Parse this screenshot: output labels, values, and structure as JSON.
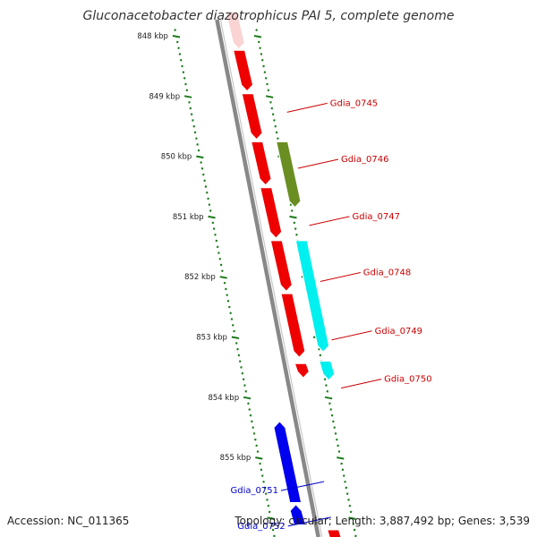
{
  "title": "Gluconacetobacter diazotrophicus PAI 5, complete genome",
  "footer": {
    "accession": "Accession: NC_011365",
    "summary": "Topology: circular; Length: 3,887,492 bp; Genes: 3,539"
  },
  "scale": {
    "unit": "kbp",
    "ticks": [
      {
        "label": "848 kbp",
        "kbp": 848
      },
      {
        "label": "849 kbp",
        "kbp": 849
      },
      {
        "label": "850 kbp",
        "kbp": 850
      },
      {
        "label": "851 kbp",
        "kbp": 851
      },
      {
        "label": "852 kbp",
        "kbp": 852
      },
      {
        "label": "853 kbp",
        "kbp": 853
      },
      {
        "label": "854 kbp",
        "kbp": 854
      },
      {
        "label": "855 kbp",
        "kbp": 855
      }
    ]
  },
  "colors": {
    "ruler": "#1a7a1a",
    "backbone": "#888888",
    "red_gene": "#ee0000",
    "olive_gene": "#6b8e23",
    "cyan_gene": "#00f0f0",
    "blue_gene": "#0000ee",
    "label_red": "#cc0000",
    "label_blue": "#0000cc"
  },
  "features": [
    {
      "strand": "+",
      "start": 847.6,
      "end": 848.22,
      "color": "pink",
      "faded": true
    },
    {
      "strand": "+",
      "start": 848.24,
      "end": 848.92,
      "color": "red"
    },
    {
      "strand": "+",
      "start": 848.96,
      "end": 849.72,
      "color": "red"
    },
    {
      "strand": "+",
      "start": 849.76,
      "end": 850.48,
      "color": "red"
    },
    {
      "strand": "+",
      "start": 850.52,
      "end": 851.36,
      "color": "red"
    },
    {
      "strand": "+",
      "start": 851.4,
      "end": 852.24,
      "color": "red"
    },
    {
      "strand": "+",
      "start": 852.28,
      "end": 853.34,
      "color": "red"
    },
    {
      "strand": "+",
      "start": 853.44,
      "end": 853.68,
      "color": "red"
    },
    {
      "strand": "+",
      "start": 856.2,
      "end": 856.5,
      "color": "red"
    },
    {
      "strand": "+",
      "outer": true,
      "start": 849.76,
      "end": 850.85,
      "color": "olive"
    },
    {
      "strand": "+",
      "outer": true,
      "start": 851.4,
      "end": 853.25,
      "color": "cyan"
    },
    {
      "strand": "+",
      "outer": true,
      "start": 853.4,
      "end": 853.72,
      "color": "cyan"
    },
    {
      "strand": "-",
      "start": 854.4,
      "end": 855.75,
      "color": "blue"
    },
    {
      "strand": "-",
      "start": 855.78,
      "end": 856.12,
      "color": "blue"
    }
  ],
  "gene_labels": [
    {
      "text": "Gdia_0745",
      "side": "right",
      "kbp": 849.12,
      "color": "red"
    },
    {
      "text": "Gdia_0746",
      "side": "right",
      "kbp": 850.05,
      "color": "red"
    },
    {
      "text": "Gdia_0747",
      "side": "right",
      "kbp": 851.0,
      "color": "red"
    },
    {
      "text": "Gdia_0748",
      "side": "right",
      "kbp": 851.93,
      "color": "red"
    },
    {
      "text": "Gdia_0749",
      "side": "right",
      "kbp": 852.9,
      "color": "red"
    },
    {
      "text": "Gdia_0750",
      "side": "right",
      "kbp": 853.7,
      "color": "red"
    },
    {
      "text": "Gdia_0751",
      "side": "left",
      "kbp": 855.58,
      "color": "blue"
    },
    {
      "text": "Gdia_0752",
      "side": "left",
      "kbp": 856.17,
      "color": "blue"
    }
  ]
}
